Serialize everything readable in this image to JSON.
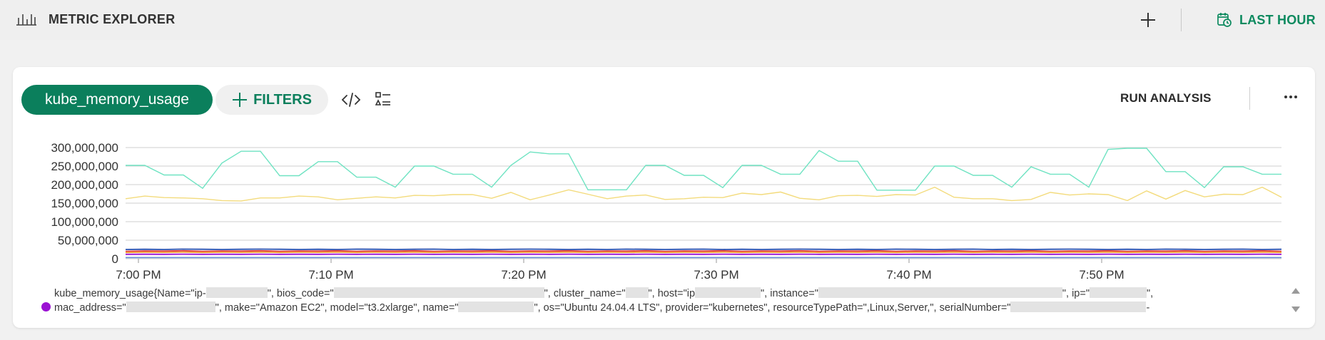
{
  "header": {
    "title": "METRIC EXPLORER",
    "time_range_label": "LAST HOUR",
    "accent_color": "#0d8a5f"
  },
  "toolbar": {
    "metric_label": "kube_memory_usage",
    "filters_label": "FILTERS",
    "run_analysis_label": "RUN ANALYSIS",
    "icons": [
      "bar-chart-icon",
      "plus-icon",
      "calendar-clock-icon",
      "code-icon",
      "list-filter-icon",
      "more-icon"
    ]
  },
  "legend": {
    "dot_color": "#9b12d3",
    "metric": "kube_memory_usage{Name=\"ip-",
    "bios_code": "\", bios_code=\"",
    "cluster_name": "\", cluster_name=\"",
    "host": "\", host=\"ip",
    "instance": "\", instance=\"",
    "ip": "\", ip=\"",
    "line1_end": "\",",
    "mac_address": "mac_address=\"",
    "make": "\", make=\"Amazon EC2\", model=\"t3.2xlarge\", name=\"",
    "os": "\", os=\"Ubuntu 24.04.4 LTS\", provider=\"kubernetes\", resourceTypePath=\",Linux,Server,\", serialNumber=\"",
    "line2_end": "-"
  },
  "chart_data": {
    "type": "line",
    "x_tick_labels": [
      "7:00 PM",
      "7:10 PM",
      "7:20 PM",
      "7:30 PM",
      "7:40 PM",
      "7:50 PM"
    ],
    "y_tick_labels": [
      "0",
      "50,000,000",
      "100,000,000",
      "150,000,000",
      "200,000,000",
      "250,000,000",
      "300,000,000"
    ],
    "ylim": [
      0,
      300000000
    ],
    "x_minutes": [
      0,
      1,
      2,
      3,
      4,
      5,
      6,
      7,
      8,
      9,
      10,
      11,
      12,
      13,
      14,
      15,
      16,
      17,
      18,
      19,
      20,
      21,
      22,
      23,
      24,
      25,
      26,
      27,
      28,
      29,
      30,
      31,
      32,
      33,
      34,
      35,
      36,
      37,
      38,
      39,
      40,
      41,
      42,
      43,
      44,
      45,
      46,
      47,
      48,
      49,
      50,
      51,
      52,
      53,
      54,
      55,
      56,
      57,
      58,
      59,
      60
    ],
    "series": [
      {
        "color": "#6fe3c2",
        "values": [
          252000000,
          252000000,
          226000000,
          226000000,
          190000000,
          258000000,
          290000000,
          290000000,
          224000000,
          224000000,
          262000000,
          262000000,
          220000000,
          220000000,
          193000000,
          250000000,
          250000000,
          228000000,
          228000000,
          193000000,
          252000000,
          288000000,
          283000000,
          283000000,
          186000000,
          186000000,
          186000000,
          252000000,
          252000000,
          225000000,
          225000000,
          192000000,
          252000000,
          252000000,
          228000000,
          228000000,
          292000000,
          263000000,
          263000000,
          185000000,
          185000000,
          185000000,
          250000000,
          250000000,
          225000000,
          225000000,
          193000000,
          248000000,
          228000000,
          228000000,
          193000000,
          295000000,
          298000000,
          298000000,
          235000000,
          235000000,
          192000000,
          248000000,
          248000000,
          228000000,
          228000000
        ]
      },
      {
        "color": "#f3db7c",
        "values": [
          162000000,
          169000000,
          165000000,
          164000000,
          162000000,
          157000000,
          156000000,
          164000000,
          164000000,
          169000000,
          167000000,
          159000000,
          163000000,
          167000000,
          164000000,
          171000000,
          170000000,
          173000000,
          173000000,
          163000000,
          179000000,
          159000000,
          172000000,
          186000000,
          174000000,
          162000000,
          169000000,
          172000000,
          160000000,
          162000000,
          166000000,
          165000000,
          177000000,
          173000000,
          180000000,
          163000000,
          159000000,
          170000000,
          171000000,
          168000000,
          173000000,
          172000000,
          193000000,
          166000000,
          162000000,
          162000000,
          157000000,
          160000000,
          179000000,
          172000000,
          175000000,
          173000000,
          157000000,
          183000000,
          161000000,
          184000000,
          167000000,
          174000000,
          173000000,
          193000000,
          166000000
        ]
      },
      {
        "color": "#2a4fb0",
        "values": [
          25000000,
          25500000,
          25000000,
          26000000,
          25500000,
          25000000,
          25500000,
          26000000,
          25500000,
          25000000,
          25500000,
          25000000,
          26000000,
          25500000,
          25000000,
          25500000,
          26000000,
          25000000,
          25500000,
          25000000,
          25500000,
          26000000,
          25500000,
          25000000,
          25500000,
          25000000,
          26000000,
          25500000,
          25000000,
          25500000,
          26000000,
          25000000,
          25500000,
          25000000,
          25500000,
          26000000,
          25500000,
          25000000,
          25500000,
          25000000,
          26000000,
          25500000,
          25000000,
          25500000,
          26000000,
          25000000,
          25500000,
          25000000,
          25500000,
          26000000,
          25500000,
          25000000,
          25500000,
          25000000,
          26000000,
          25500000,
          25000000,
          25500000,
          26000000,
          25000000,
          25500000
        ]
      },
      {
        "color": "#e23a3a",
        "values": [
          20000000,
          21000000,
          20500000,
          21500000,
          20000000,
          21000000,
          20500000,
          21500000,
          20000000,
          21000000,
          20500000,
          21500000,
          20000000,
          21000000,
          20500000,
          21500000,
          20000000,
          21000000,
          20500000,
          21500000,
          20000000,
          21000000,
          20500000,
          21500000,
          20000000,
          21000000,
          20500000,
          21500000,
          20000000,
          21000000,
          20500000,
          21500000,
          20000000,
          21000000,
          20500000,
          21500000,
          20000000,
          21000000,
          20500000,
          21500000,
          20000000,
          21000000,
          20500000,
          21500000,
          20000000,
          21000000,
          20500000,
          21500000,
          20000000,
          21000000,
          20500000,
          21500000,
          20000000,
          21000000,
          20500000,
          21500000,
          20000000,
          21000000,
          20500000,
          21500000,
          20000000
        ]
      },
      {
        "color": "#f2a23a",
        "values": [
          17000000,
          17500000,
          17200000,
          17800000,
          17000000,
          17500000,
          17200000,
          17800000,
          17000000,
          17500000,
          17200000,
          17800000,
          17000000,
          17500000,
          17200000,
          17800000,
          17000000,
          17500000,
          17200000,
          17800000,
          17000000,
          17500000,
          17200000,
          17800000,
          17000000,
          17500000,
          17200000,
          17800000,
          17000000,
          17500000,
          17200000,
          17800000,
          17000000,
          17500000,
          17200000,
          17800000,
          17000000,
          17500000,
          17200000,
          17800000,
          17000000,
          17500000,
          17200000,
          17800000,
          17000000,
          17500000,
          17200000,
          17800000,
          17000000,
          17500000,
          17200000,
          17800000,
          17000000,
          17500000,
          17200000,
          17800000,
          17000000,
          17500000,
          17200000,
          17800000,
          17000000
        ]
      },
      {
        "color": "#9b12d3",
        "values": [
          12000000,
          12200000,
          12000000,
          12300000,
          12000000,
          12200000,
          12000000,
          12300000,
          12000000,
          12200000,
          12000000,
          12300000,
          12000000,
          12200000,
          12000000,
          12300000,
          12000000,
          12200000,
          12000000,
          12300000,
          12000000,
          12200000,
          12000000,
          12300000,
          12000000,
          12200000,
          12000000,
          12300000,
          12000000,
          12200000,
          12000000,
          12300000,
          12000000,
          12200000,
          12000000,
          12300000,
          12000000,
          12200000,
          12000000,
          12300000,
          12000000,
          12200000,
          12000000,
          12300000,
          12000000,
          12200000,
          12000000,
          12300000,
          12000000,
          12200000,
          12000000,
          12300000,
          12000000,
          12200000,
          12000000,
          12300000,
          12000000,
          12200000,
          12000000,
          12300000,
          12000000
        ]
      },
      {
        "color": "#6b8fd6",
        "values": [
          3000000,
          3000000,
          3000000,
          3000000,
          3000000,
          3000000,
          3000000,
          3000000,
          3000000,
          3000000,
          3000000,
          3000000,
          3000000,
          3000000,
          3000000,
          3000000,
          3000000,
          3000000,
          3000000,
          3000000,
          3000000,
          3000000,
          3000000,
          3000000,
          3000000,
          3000000,
          3000000,
          3000000,
          3000000,
          3000000,
          3000000,
          3000000,
          3000000,
          3000000,
          3000000,
          3000000,
          3000000,
          3000000,
          3000000,
          3000000,
          3000000,
          3000000,
          3000000,
          3000000,
          3000000,
          3000000,
          3000000,
          3000000,
          3000000,
          3000000,
          3000000,
          3000000,
          3000000,
          3000000,
          3000000,
          3000000,
          3000000,
          3000000,
          3000000,
          3000000,
          3000000
        ]
      }
    ],
    "grid": true
  }
}
